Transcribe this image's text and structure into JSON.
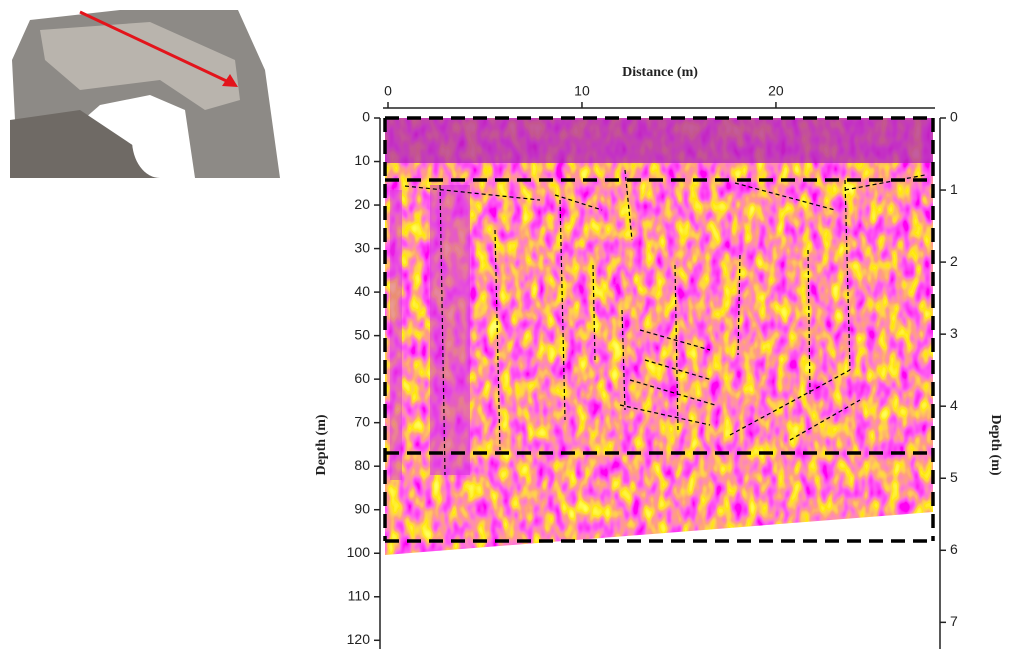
{
  "chart_data": {
    "type": "radargram",
    "xlabel": "Distance (m)",
    "ylabel": "Depth (m)",
    "y2label": "Depth (m)",
    "xlim": [
      0,
      28.2
    ],
    "xticks": [
      0,
      10,
      20
    ],
    "ylim": [
      0,
      122
    ],
    "yticks": [
      0,
      10,
      20,
      30,
      40,
      50,
      60,
      70,
      80,
      90,
      100,
      110,
      120
    ],
    "y2lim": [
      0,
      7.37
    ],
    "y2ticks": [
      0,
      1,
      2,
      3,
      4,
      5,
      6,
      7
    ]
  }
}
